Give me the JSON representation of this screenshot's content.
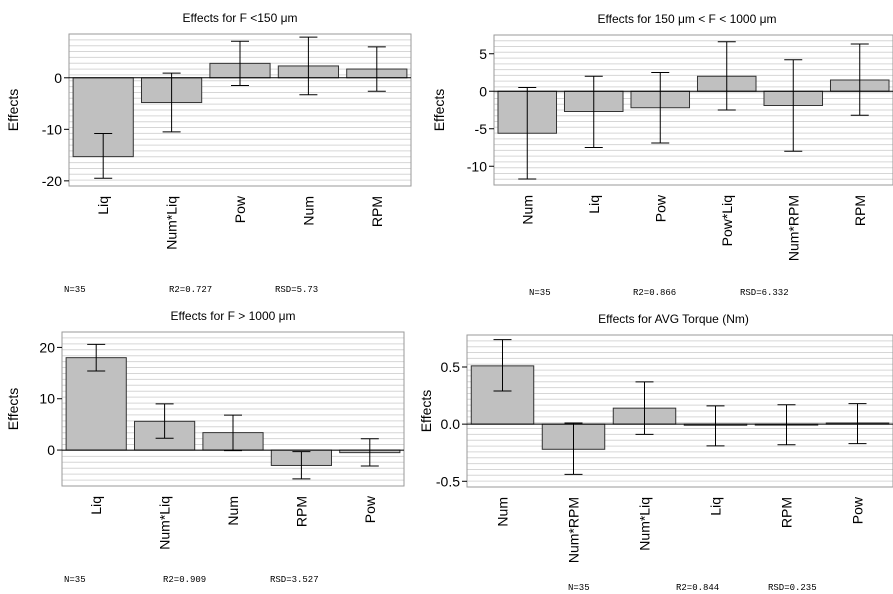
{
  "chart_data": [
    {
      "type": "bar",
      "title": "Effects for F <150 μm",
      "ylabel": "Effects",
      "categories": [
        "Liq",
        "Num*Liq",
        "Pow",
        "Num",
        "RPM"
      ],
      "values": [
        -15.3,
        -4.8,
        2.8,
        2.3,
        1.7
      ],
      "error_low": [
        -19.5,
        -10.5,
        -1.5,
        -3.3,
        -2.6
      ],
      "error_high": [
        -10.8,
        0.9,
        7.1,
        7.9,
        6.0
      ],
      "ylim": [
        -21,
        8.5
      ],
      "yticks": [
        -20,
        -10,
        0
      ],
      "grid": true,
      "stats": {
        "n": "N=35",
        "r2": "R2=0.727",
        "rsd": "RSD=5.73"
      }
    },
    {
      "type": "bar",
      "title": "Effects for 150 μm < F < 1000 μm",
      "ylabel": "Effects",
      "categories": [
        "Num",
        "Liq",
        "Pow",
        "Pow*Liq",
        "Num*RPM",
        "RPM"
      ],
      "values": [
        -5.6,
        -2.7,
        -2.2,
        2.0,
        -1.9,
        1.5
      ],
      "error_low": [
        -11.7,
        -7.5,
        -6.9,
        -2.5,
        -8.0,
        -3.2
      ],
      "error_high": [
        0.5,
        2.0,
        2.5,
        6.6,
        4.2,
        6.3
      ],
      "ylim": [
        -12.5,
        7.5
      ],
      "yticks": [
        -10,
        -5,
        0,
        5
      ],
      "grid": true,
      "stats": {
        "n": "N=35",
        "r2": "R2=0.866",
        "rsd": "RSD=6.332"
      }
    },
    {
      "type": "bar",
      "title": "Effects for F > 1000 μm",
      "ylabel": "Effects",
      "categories": [
        "Liq",
        "Num*Liq",
        "Num",
        "RPM",
        "Pow"
      ],
      "values": [
        18.0,
        5.6,
        3.4,
        -3.0,
        -0.5
      ],
      "error_low": [
        15.4,
        2.3,
        -0.1,
        -5.6,
        -3.1
      ],
      "error_high": [
        20.6,
        9.0,
        6.8,
        -0.3,
        2.2
      ],
      "ylim": [
        -7,
        23
      ],
      "yticks": [
        0,
        10,
        20
      ],
      "grid": true,
      "stats": {
        "n": "N=35",
        "r2": "R2=0.909",
        "rsd": "RSD=3.527"
      }
    },
    {
      "type": "bar",
      "title": "Effects for AVG Torque (Nm)",
      "ylabel": "Effects",
      "categories": [
        "Num",
        "Num*RPM",
        "Num*Liq",
        "Liq",
        "RPM",
        "Pow"
      ],
      "values": [
        0.51,
        -0.22,
        0.14,
        -0.01,
        0.0,
        0.01
      ],
      "error_low": [
        0.29,
        -0.44,
        -0.09,
        -0.19,
        -0.18,
        -0.17
      ],
      "error_high": [
        0.74,
        0.01,
        0.37,
        0.16,
        0.17,
        0.18
      ],
      "ylim": [
        -0.55,
        0.78
      ],
      "yticks": [
        -0.5,
        0.0,
        0.5
      ],
      "ytick_labels": [
        "-0.5",
        "0.0",
        "0.5"
      ],
      "grid": true,
      "stats": {
        "n": "N=35",
        "r2": "R2=0.844",
        "rsd": "RSD=0.235"
      }
    }
  ]
}
